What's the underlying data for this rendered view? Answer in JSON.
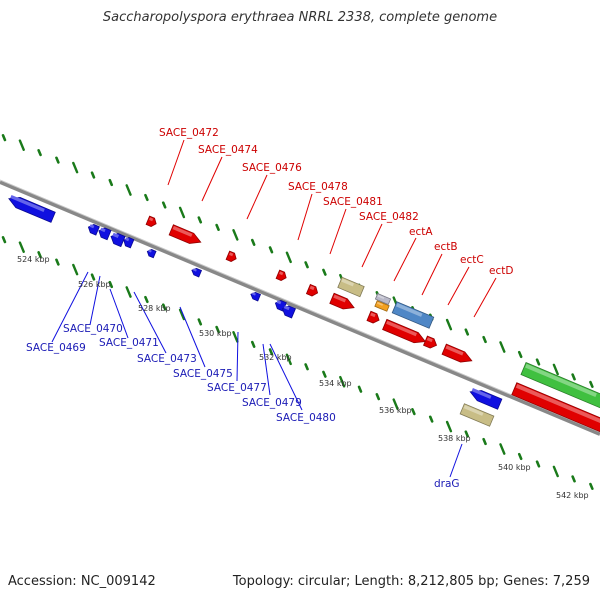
{
  "title": "Saccharopolyspora erythraea NRRL 2338, complete genome",
  "footer": {
    "accession": "Accession: NC_009142",
    "topology": "Topology: circular; Length: 8,212,805 bp; Genes: 7,259"
  },
  "colors": {
    "forward_gene": "#e00000",
    "reverse_gene": "#1010e0",
    "forward_label": "#cc0000",
    "reverse_label": "#1a1ab5",
    "tick": "#1a7a1a",
    "backbone": "#777777",
    "rrna_like": "#c8bd86",
    "other_a": "#f2a020",
    "other_b": "#b9b9c9",
    "other_c": "#4f87c6",
    "large_feature": "#40c040"
  },
  "kbp_labels": [
    "524 kbp",
    "526 kbp",
    "528 kbp",
    "530 kbp",
    "532 kbp",
    "534 kbp",
    "536 kbp",
    "538 kbp",
    "540 kbp",
    "542 kbp"
  ],
  "forward_labels": [
    "SACE_0472",
    "SACE_0474",
    "SACE_0476",
    "SACE_0478",
    "SACE_0481",
    "SACE_0482",
    "ectA",
    "ectB",
    "ectC",
    "ectD"
  ],
  "reverse_labels": [
    "SACE_0469",
    "SACE_0470",
    "SACE_0471",
    "SACE_0473",
    "SACE_0475",
    "SACE_0477",
    "SACE_0479",
    "SACE_0480",
    "draG"
  ]
}
